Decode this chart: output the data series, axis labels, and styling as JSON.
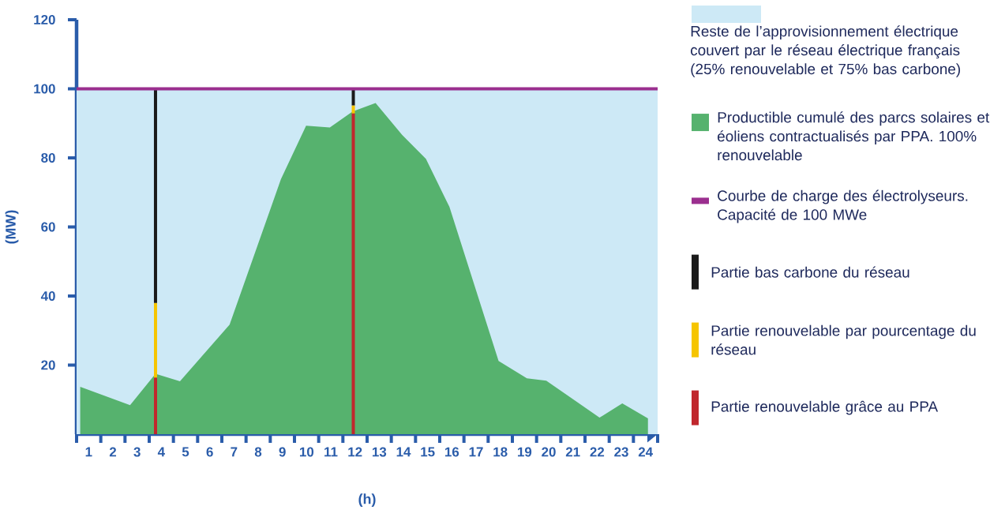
{
  "chart_data": {
    "type": "area",
    "xlabel": "(h)",
    "ylabel": "(MW)",
    "xlim": [
      0.5,
      24.5
    ],
    "ylim": [
      0,
      120
    ],
    "xticks": [
      1,
      2,
      3,
      4,
      5,
      6,
      7,
      8,
      9,
      10,
      11,
      12,
      13,
      14,
      15,
      16,
      17,
      18,
      19,
      20,
      21,
      22,
      23,
      24,
      {
        "value": 0.5,
        "label": null
      },
      {
        "value": 1.5,
        "label": null
      },
      {
        "value": 2.5,
        "label": null
      },
      {
        "value": 3.5,
        "label": null
      },
      {
        "value": 4.5,
        "label": null
      },
      {
        "value": 5.5,
        "label": null
      },
      {
        "value": 6.5,
        "label": null
      },
      {
        "value": 7.5,
        "label": null
      },
      {
        "value": 8.5,
        "label": null
      },
      {
        "value": 9.5,
        "label": null
      },
      {
        "value": 10.5,
        "label": null
      },
      {
        "value": 11.5,
        "label": null
      },
      {
        "value": 12.5,
        "label": null
      },
      {
        "value": 13.5,
        "label": null
      },
      {
        "value": 14.5,
        "label": null
      },
      {
        "value": 15.5,
        "label": null
      },
      {
        "value": 16.5,
        "label": null
      },
      {
        "value": 17.5,
        "label": null
      },
      {
        "value": 18.5,
        "label": null
      },
      {
        "value": 19.5,
        "label": null
      },
      {
        "value": 20.5,
        "label": null
      },
      {
        "value": 21.5,
        "label": null
      },
      {
        "value": 22.5,
        "label": null
      },
      {
        "value": 23.5,
        "label": null
      },
      {
        "value": 24.5,
        "label": null
      }
    ],
    "yticks": [
      20,
      40,
      60,
      80,
      100,
      120
    ],
    "legend": "right",
    "stacked": true,
    "bands": [
      {
        "axis": "y",
        "from": 0,
        "to": 100,
        "label": "Reste de l’approvisionnement électrique couvert par le réseau électrique français (25% renouvelable et 75% bas carbone)",
        "color": "#cde9f6"
      }
    ],
    "ref_lines": [
      {
        "axis": "y",
        "value": 100,
        "label": "Courbe de charge des électrolyseurs. Capacité de 100 MWe",
        "color": "#9b2f8f"
      }
    ],
    "series": [
      {
        "name": "Productible cumulé des parcs solaires et éoliens contractualisés par PPA. 100% renouvelable",
        "color": "#56b26e",
        "x": [
          0.65,
          2.71,
          3.76,
          4.77,
          6.82,
          8.94,
          9.98,
          10.96,
          11.9,
          12.85,
          13.95,
          14.93,
          15.9,
          17.93,
          19.1,
          19.9,
          22.1,
          23.04,
          24.1
        ],
        "values": [
          13.7,
          8.4,
          17.5,
          15.3,
          31.7,
          73.8,
          89.3,
          88.8,
          93.4,
          95.9,
          86.6,
          79.7,
          65.8,
          21.2,
          16.2,
          15.5,
          4.8,
          8.9,
          4.6
        ]
      },
      {
        "name": "Partie renouvelable grâce au PPA",
        "type": "bar",
        "color": "#c0272d",
        "x": [
          3.76,
          11.93
        ],
        "values": [
          16.4,
          92.9
        ]
      },
      {
        "name": "Partie renouvelable par pourcentage du réseau",
        "type": "bar",
        "color": "#f6c500",
        "x": [
          3.76,
          11.93
        ],
        "values": [
          21.6,
          2.3
        ]
      },
      {
        "name": "Partie bas carbone du réseau",
        "type": "bar",
        "color": "#1a1a1a",
        "x": [
          3.76,
          11.93
        ],
        "values": [
          62.0,
          4.8
        ]
      }
    ]
  }
}
